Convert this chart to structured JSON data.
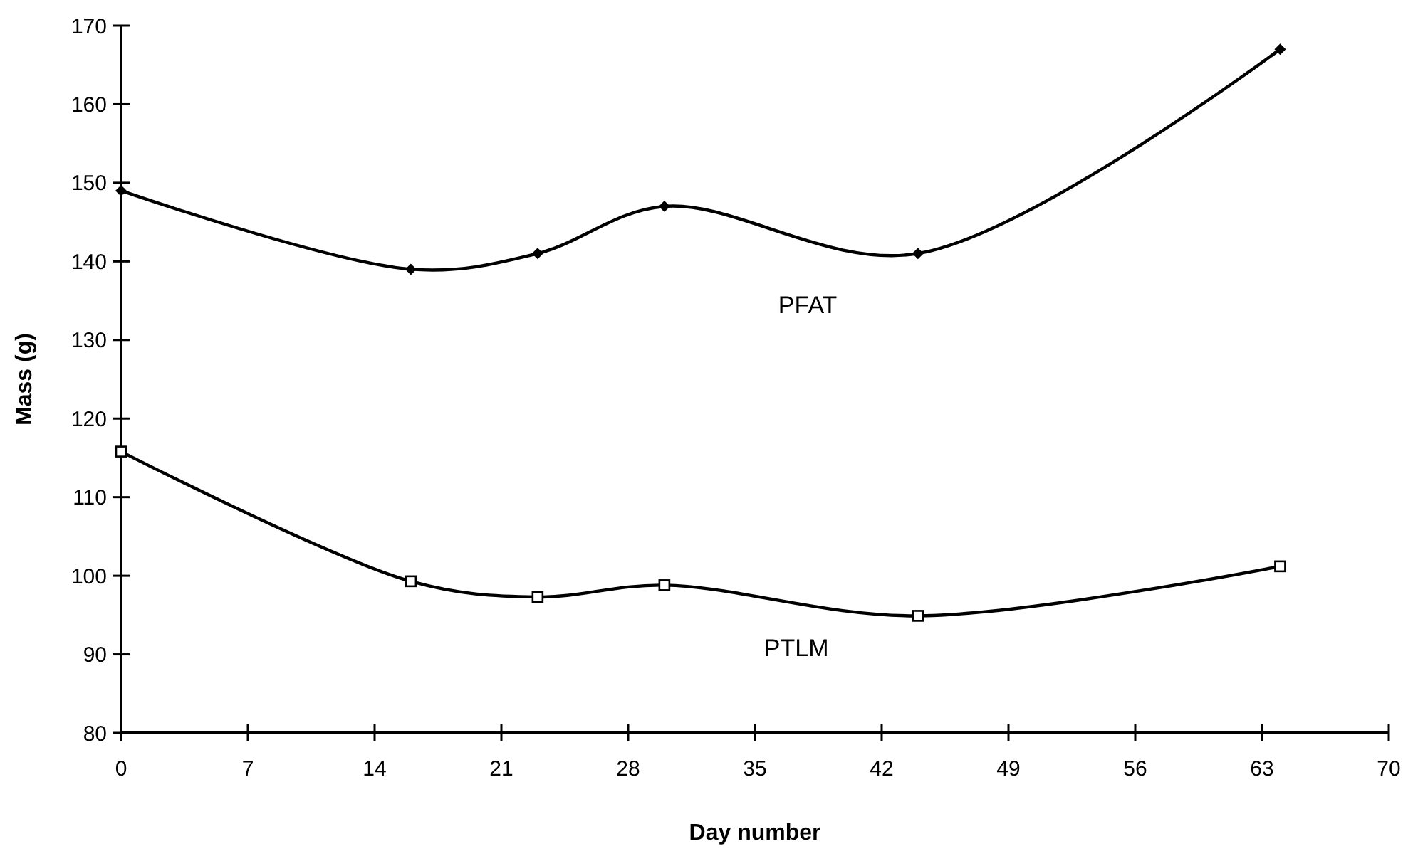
{
  "chart_data": {
    "type": "line",
    "xlabel": "Day number",
    "ylabel": "Mass (g)",
    "xlim": [
      0,
      70
    ],
    "ylim": [
      80,
      170
    ],
    "xticks": [
      0,
      7,
      14,
      21,
      28,
      35,
      42,
      49,
      56,
      63,
      70
    ],
    "yticks": [
      80,
      90,
      100,
      110,
      120,
      130,
      140,
      150,
      160,
      170
    ],
    "grid": false,
    "line_style": "solid",
    "series": [
      {
        "name": "PFAT",
        "color": "#000000",
        "marker": "diamond",
        "x": [
          0,
          16,
          23,
          30,
          44,
          64
        ],
        "values": [
          149,
          139,
          141,
          147,
          141,
          167
        ]
      },
      {
        "name": "PTLM",
        "color": "#000000",
        "marker": "square",
        "x": [
          0,
          16,
          23,
          30,
          44,
          64
        ],
        "values": [
          115.8,
          99.3,
          97.3,
          98.8,
          94.9,
          101.2
        ]
      }
    ]
  }
}
